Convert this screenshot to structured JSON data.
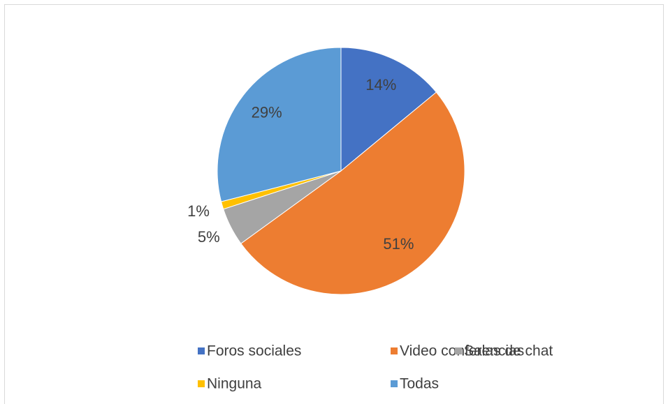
{
  "chart_data": {
    "type": "pie",
    "categories": [
      "Foros sociales",
      "Video conferencias",
      "Salas de chat",
      "Ninguna",
      "Todas"
    ],
    "values": [
      14,
      51,
      5,
      1,
      29
    ],
    "value_labels": [
      "14%",
      "51%",
      "5%",
      "1%",
      "29%"
    ],
    "colors": [
      "#4472c4",
      "#ed7d31",
      "#a5a5a5",
      "#ffc000",
      "#5b9bd5"
    ],
    "legend": "bottom"
  }
}
